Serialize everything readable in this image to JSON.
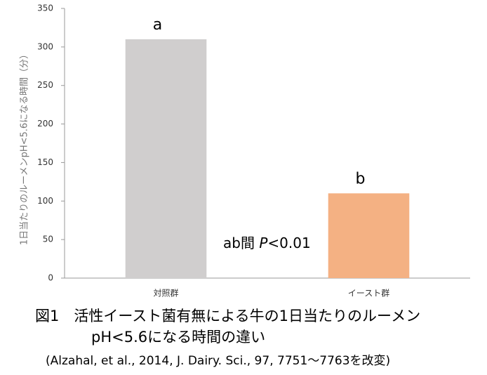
{
  "chart_data": {
    "type": "bar",
    "ylabel": "1日当たりのルーメンpH<5.6になる時間（分）",
    "categories": [
      "対照群",
      "イースト群"
    ],
    "values": [
      310,
      110
    ],
    "colors": [
      "#d0cece",
      "#f4b183"
    ],
    "significance_labels": [
      "a",
      "b"
    ],
    "annotation": [
      "ab間 ",
      "P",
      "<0.01"
    ],
    "ylim": [
      0,
      350
    ],
    "yticks": [
      0,
      50,
      100,
      150,
      200,
      250,
      300,
      350
    ],
    "grid": false
  },
  "caption": [
    "図1　活性イースト菌有無による牛の1日当たりのルーメン",
    "pH<5.6になる時間の違い",
    "(Alzahal, et al., 2014, J. Dairy. Sci., 97, 7751～7763を改変)"
  ]
}
